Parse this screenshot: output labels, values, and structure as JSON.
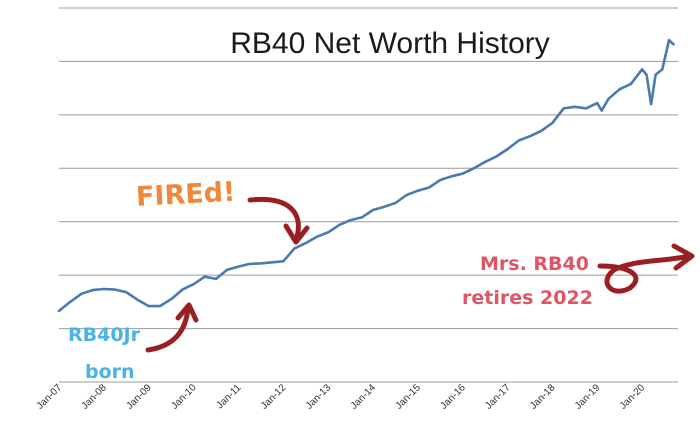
{
  "chart_data": {
    "type": "line",
    "title": "RB40 Net Worth History",
    "xlabel": "",
    "ylabel": "",
    "grid": true,
    "y_tick_labels_shown": false,
    "x_tick_labels": [
      "Jan-07",
      "Jan-08",
      "Jan-09",
      "Jan-10",
      "Jan-11",
      "Jan-12",
      "Jan-13",
      "Jan-14",
      "Jan-15",
      "Jan-16",
      "Jan-17",
      "Jan-18",
      "Jan-19",
      "Jan-20"
    ],
    "xlim": [
      2007.0,
      2020.8
    ],
    "ylim": [
      0,
      7
    ],
    "series": [
      {
        "color": "#4a7ab0",
        "points": [
          [
            2007.0,
            1.33
          ],
          [
            2007.25,
            1.5
          ],
          [
            2007.5,
            1.65
          ],
          [
            2007.75,
            1.72
          ],
          [
            2008.0,
            1.74
          ],
          [
            2008.25,
            1.73
          ],
          [
            2008.5,
            1.68
          ],
          [
            2008.75,
            1.54
          ],
          [
            2009.0,
            1.42
          ],
          [
            2009.25,
            1.42
          ],
          [
            2009.5,
            1.55
          ],
          [
            2009.75,
            1.73
          ],
          [
            2010.0,
            1.83
          ],
          [
            2010.25,
            1.97
          ],
          [
            2010.5,
            1.93
          ],
          [
            2010.75,
            2.1
          ],
          [
            2011.0,
            2.16
          ],
          [
            2011.25,
            2.21
          ],
          [
            2011.5,
            2.22
          ],
          [
            2011.75,
            2.24
          ],
          [
            2012.0,
            2.26
          ],
          [
            2012.25,
            2.5
          ],
          [
            2012.5,
            2.6
          ],
          [
            2012.75,
            2.72
          ],
          [
            2013.0,
            2.8
          ],
          [
            2013.25,
            2.94
          ],
          [
            2013.5,
            3.03
          ],
          [
            2013.75,
            3.08
          ],
          [
            2014.0,
            3.22
          ],
          [
            2014.25,
            3.28
          ],
          [
            2014.5,
            3.35
          ],
          [
            2014.75,
            3.5
          ],
          [
            2015.0,
            3.58
          ],
          [
            2015.25,
            3.64
          ],
          [
            2015.5,
            3.78
          ],
          [
            2015.75,
            3.85
          ],
          [
            2016.0,
            3.9
          ],
          [
            2016.25,
            4.0
          ],
          [
            2016.5,
            4.12
          ],
          [
            2016.75,
            4.22
          ],
          [
            2017.0,
            4.36
          ],
          [
            2017.25,
            4.52
          ],
          [
            2017.5,
            4.6
          ],
          [
            2017.75,
            4.7
          ],
          [
            2018.0,
            4.85
          ],
          [
            2018.25,
            5.12
          ],
          [
            2018.5,
            5.15
          ],
          [
            2018.75,
            5.12
          ],
          [
            2019.0,
            5.22
          ],
          [
            2019.1,
            5.08
          ],
          [
            2019.25,
            5.3
          ],
          [
            2019.5,
            5.48
          ],
          [
            2019.75,
            5.58
          ],
          [
            2020.0,
            5.85
          ],
          [
            2020.1,
            5.75
          ],
          [
            2020.2,
            5.2
          ],
          [
            2020.3,
            5.75
          ],
          [
            2020.45,
            5.85
          ],
          [
            2020.6,
            6.4
          ],
          [
            2020.7,
            6.32
          ]
        ]
      }
    ],
    "annotations": [
      {
        "text": "FIREd!",
        "color": "#f0873a"
      },
      {
        "text": "RB40Jr",
        "color": "#4ab3e6"
      },
      {
        "text": "born",
        "color": "#4ab3e6"
      },
      {
        "text": "Mrs. RB40",
        "color": "#e05565"
      },
      {
        "text": "retires 2022",
        "color": "#e05565"
      }
    ],
    "arrow_color": "#9a1f22",
    "grid_color": "#9c9c9c"
  }
}
